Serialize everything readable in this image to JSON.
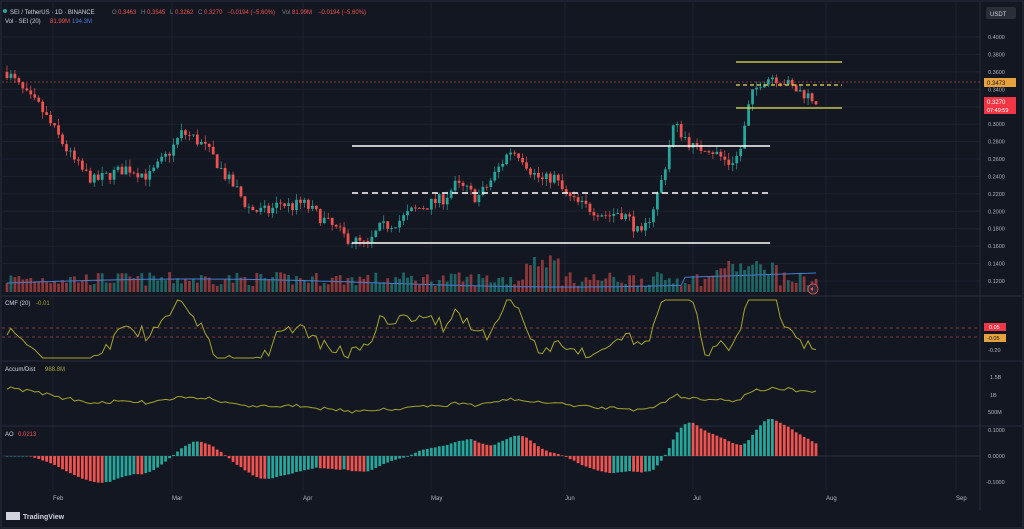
{
  "header": {
    "symbol": "SEI / TetherUS · 1D · BINANCE",
    "open_label": "O",
    "open": "0.3463",
    "high_label": "H",
    "high": "0.3545",
    "low_label": "L",
    "low": "0.3262",
    "close_label": "C",
    "close": "0.3270",
    "change": "−0.0194 (−5.60%)",
    "vol_label": "Vol",
    "vol": "81.99M",
    "vol_change": "−0.0194 (−5.60%)",
    "volume_indicator": "Vol · SEI (20)",
    "volume_value": "81.99M",
    "volume_ma": "194.3M"
  },
  "currency_badge": "USDT",
  "price_axis": {
    "ticks": [
      "0.4000",
      "0.3800",
      "0.3600",
      "0.3400",
      "0.3200",
      "0.3000",
      "0.2800",
      "0.2600",
      "0.2400",
      "0.2200",
      "0.2000",
      "0.1800",
      "0.1600",
      "0.1400",
      "0.1200"
    ],
    "marker_level": "0.3473",
    "last_price": "0.3270",
    "countdown": "07:49:59"
  },
  "cmf": {
    "label": "CMF (20)",
    "value": "-0.01",
    "ticks": [
      "0.05",
      "-0.05",
      "-0.20"
    ]
  },
  "ad": {
    "label": "Accum/Dist",
    "value": "988.8M",
    "ticks": [
      "1.5B",
      "1B",
      "500M"
    ]
  },
  "ao": {
    "label": "AO",
    "value": "0.0213",
    "ticks": [
      "0.1000",
      "0.0000",
      "-0.1000"
    ]
  },
  "time_axis": [
    "Feb",
    "Mar",
    "Apr",
    "May",
    "Jun",
    "Jul",
    "Aug",
    "Sep"
  ],
  "logo_text": "TradingView",
  "colors": {
    "background": "#131722",
    "up": "#26a69a",
    "down": "#ef5350",
    "level_lines": "#ffffff",
    "channel": "#e6e05a",
    "oscillator": "#a5a52a",
    "volume_ma": "#4b7bd0",
    "price_label_bg": "#f23645"
  },
  "chart_data": {
    "type": "candlestick",
    "key_levels": [
      0.275,
      0.22,
      0.164
    ],
    "channel": [
      0.374,
      0.347,
      0.318
    ],
    "close_path": [
      0.36,
      0.345,
      0.33,
      0.32,
      0.3,
      0.28,
      0.26,
      0.245,
      0.235,
      0.24,
      0.245,
      0.25,
      0.245,
      0.24,
      0.255,
      0.27,
      0.29,
      0.285,
      0.275,
      0.26,
      0.24,
      0.225,
      0.205,
      0.2,
      0.2,
      0.21,
      0.205,
      0.21,
      0.2,
      0.19,
      0.18,
      0.17,
      0.165,
      0.16,
      0.18,
      0.185,
      0.19,
      0.2,
      0.205,
      0.21,
      0.215,
      0.23,
      0.225,
      0.215,
      0.23,
      0.25,
      0.27,
      0.265,
      0.245,
      0.235,
      0.24,
      0.22,
      0.21,
      0.205,
      0.2,
      0.195,
      0.2,
      0.19,
      0.17,
      0.2,
      0.24,
      0.3,
      0.285,
      0.27,
      0.275,
      0.265,
      0.255,
      0.265,
      0.33,
      0.35,
      0.355,
      0.35,
      0.34,
      0.335,
      0.327
    ]
  }
}
